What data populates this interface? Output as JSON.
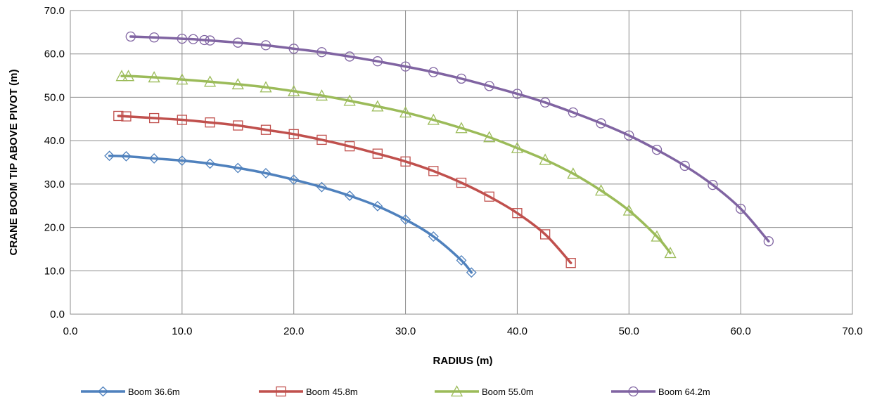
{
  "chart_data": {
    "type": "scatter",
    "title": "",
    "xlabel": "RADIUS (m)",
    "ylabel": "CRANE BOOM TIP ABOVE PIVOT (m)",
    "xlim": [
      0,
      70
    ],
    "ylim": [
      0,
      70
    ],
    "x_ticks": [
      "0.0",
      "10.0",
      "20.0",
      "30.0",
      "40.0",
      "50.0",
      "60.0",
      "70.0"
    ],
    "y_ticks": [
      "0.0",
      "10.0",
      "20.0",
      "30.0",
      "40.0",
      "50.0",
      "60.0",
      "70.0"
    ],
    "grid": true,
    "legend_position": "bottom",
    "series": [
      {
        "name": "Boom 36.6m",
        "color": "#4F81BD",
        "marker": "diamond",
        "points": [
          [
            3.5,
            36.5
          ],
          [
            5,
            36.4
          ],
          [
            7.5,
            35.9
          ],
          [
            10,
            35.4
          ],
          [
            12.5,
            34.7
          ],
          [
            15,
            33.7
          ],
          [
            17.5,
            32.5
          ],
          [
            20,
            31.0
          ],
          [
            22.5,
            29.3
          ],
          [
            25,
            27.3
          ],
          [
            27.5,
            24.9
          ],
          [
            30,
            21.8
          ],
          [
            32.5,
            17.9
          ],
          [
            35,
            12.4
          ],
          [
            35.9,
            9.6
          ]
        ]
      },
      {
        "name": "Boom 45.8m",
        "color": "#C0504D",
        "marker": "square",
        "points": [
          [
            4.3,
            45.7
          ],
          [
            5,
            45.6
          ],
          [
            7.5,
            45.2
          ],
          [
            10,
            44.8
          ],
          [
            12.5,
            44.2
          ],
          [
            15,
            43.5
          ],
          [
            17.5,
            42.5
          ],
          [
            20,
            41.5
          ],
          [
            22.5,
            40.2
          ],
          [
            25,
            38.7
          ],
          [
            27.5,
            37.0
          ],
          [
            30,
            35.2
          ],
          [
            32.5,
            33.0
          ],
          [
            35,
            30.3
          ],
          [
            37.5,
            27.1
          ],
          [
            40,
            23.3
          ],
          [
            42.5,
            18.4
          ],
          [
            44.8,
            11.8
          ]
        ]
      },
      {
        "name": "Boom 55.0m",
        "color": "#9BBB59",
        "marker": "triangle",
        "points": [
          [
            4.6,
            54.9
          ],
          [
            5.2,
            54.9
          ],
          [
            7.5,
            54.6
          ],
          [
            10,
            54.1
          ],
          [
            12.5,
            53.6
          ],
          [
            15,
            53.0
          ],
          [
            17.5,
            52.3
          ],
          [
            20,
            51.4
          ],
          [
            22.5,
            50.4
          ],
          [
            25,
            49.2
          ],
          [
            27.5,
            47.9
          ],
          [
            30,
            46.5
          ],
          [
            32.5,
            44.8
          ],
          [
            35,
            42.9
          ],
          [
            37.5,
            40.8
          ],
          [
            40,
            38.3
          ],
          [
            42.5,
            35.6
          ],
          [
            45,
            32.4
          ],
          [
            47.5,
            28.5
          ],
          [
            50,
            23.9
          ],
          [
            52.5,
            17.9
          ],
          [
            53.7,
            14.1
          ]
        ]
      },
      {
        "name": "Boom 64.2m",
        "color": "#8064A2",
        "marker": "circle",
        "points": [
          [
            5.4,
            64.0
          ],
          [
            7.5,
            63.8
          ],
          [
            10,
            63.5
          ],
          [
            11,
            63.4
          ],
          [
            12,
            63.2
          ],
          [
            12.5,
            63.1
          ],
          [
            15,
            62.6
          ],
          [
            17.5,
            62.0
          ],
          [
            20,
            61.2
          ],
          [
            22.5,
            60.4
          ],
          [
            25,
            59.4
          ],
          [
            27.5,
            58.3
          ],
          [
            30,
            57.1
          ],
          [
            32.5,
            55.8
          ],
          [
            35,
            54.3
          ],
          [
            37.5,
            52.6
          ],
          [
            40,
            50.8
          ],
          [
            42.5,
            48.8
          ],
          [
            45,
            46.5
          ],
          [
            47.5,
            44.0
          ],
          [
            50,
            41.2
          ],
          [
            52.5,
            37.9
          ],
          [
            55,
            34.2
          ],
          [
            57.5,
            29.8
          ],
          [
            60,
            24.3
          ],
          [
            62.5,
            16.8
          ]
        ]
      }
    ]
  }
}
